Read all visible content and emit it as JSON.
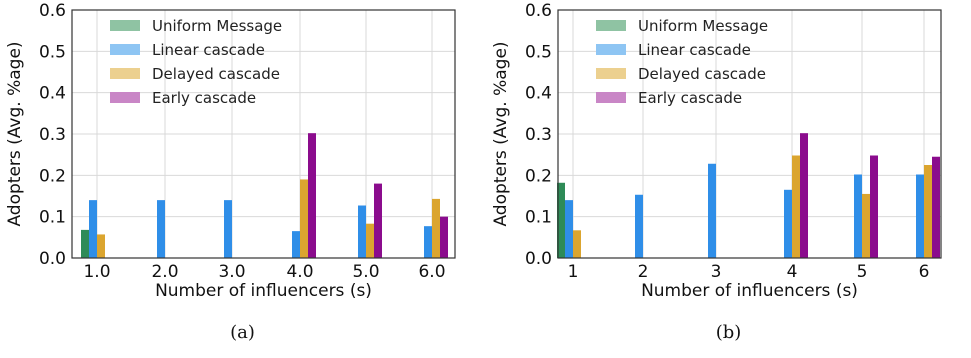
{
  "chart_data": [
    {
      "type": "bar",
      "caption": "(a)",
      "xlabel": "Number of influencers (s)",
      "ylabel": "Adopters (Avg. %age)",
      "ylim": [
        0,
        0.6
      ],
      "yticks": [
        "0.0",
        "0.1",
        "0.2",
        "0.3",
        "0.4",
        "0.5",
        "0.6"
      ],
      "categories": [
        "1.0",
        "2.0",
        "3.0",
        "4.0",
        "5.0",
        "6.0"
      ],
      "grid": true,
      "legend_position": "top-left",
      "series": [
        {
          "name": "Uniform Message",
          "color": "#2e8b57",
          "legend_color": "#8fc3a3",
          "values": [
            0.068,
            0,
            0,
            0,
            0,
            0
          ]
        },
        {
          "name": "Linear cascade",
          "color": "#2f8ee8",
          "legend_color": "#8ec5f3",
          "values": [
            0.14,
            0.14,
            0.14,
            0.065,
            0.127,
            0.077
          ]
        },
        {
          "name": "Delayed cascade",
          "color": "#dba52f",
          "legend_color": "#ecd08f",
          "values": [
            0.057,
            0,
            0,
            0.19,
            0.083,
            0.143
          ]
        },
        {
          "name": "Early cascade",
          "color": "#8b0c8d",
          "legend_color": "#c986c6",
          "values": [
            0,
            0,
            0,
            0.302,
            0.18,
            0.1
          ]
        }
      ]
    },
    {
      "type": "bar",
      "caption": "(b)",
      "xlabel": "Number of influencers (s)",
      "ylabel": "Adopters (Avg. %age)",
      "ylim": [
        0,
        0.6
      ],
      "yticks": [
        "0.0",
        "0.1",
        "0.2",
        "0.3",
        "0.4",
        "0.5",
        "0.6"
      ],
      "categories": [
        "1",
        "2",
        "3",
        "4",
        "5",
        "6"
      ],
      "grid": true,
      "legend_position": "top-left",
      "series": [
        {
          "name": "Uniform Message",
          "color": "#2e8b57",
          "legend_color": "#8fc3a3",
          "values": [
            0.182,
            0,
            0,
            0,
            0,
            0
          ]
        },
        {
          "name": "Linear cascade",
          "color": "#2f8ee8",
          "legend_color": "#8ec5f3",
          "values": [
            0.14,
            0.153,
            0.228,
            0.165,
            0.202,
            0.202
          ]
        },
        {
          "name": "Delayed cascade",
          "color": "#dba52f",
          "legend_color": "#ecd08f",
          "values": [
            0.067,
            0,
            0,
            0.248,
            0.155,
            0.225
          ]
        },
        {
          "name": "Early cascade",
          "color": "#8b0c8d",
          "legend_color": "#c986c6",
          "values": [
            0,
            0,
            0,
            0.302,
            0.248,
            0.245
          ]
        }
      ]
    }
  ]
}
